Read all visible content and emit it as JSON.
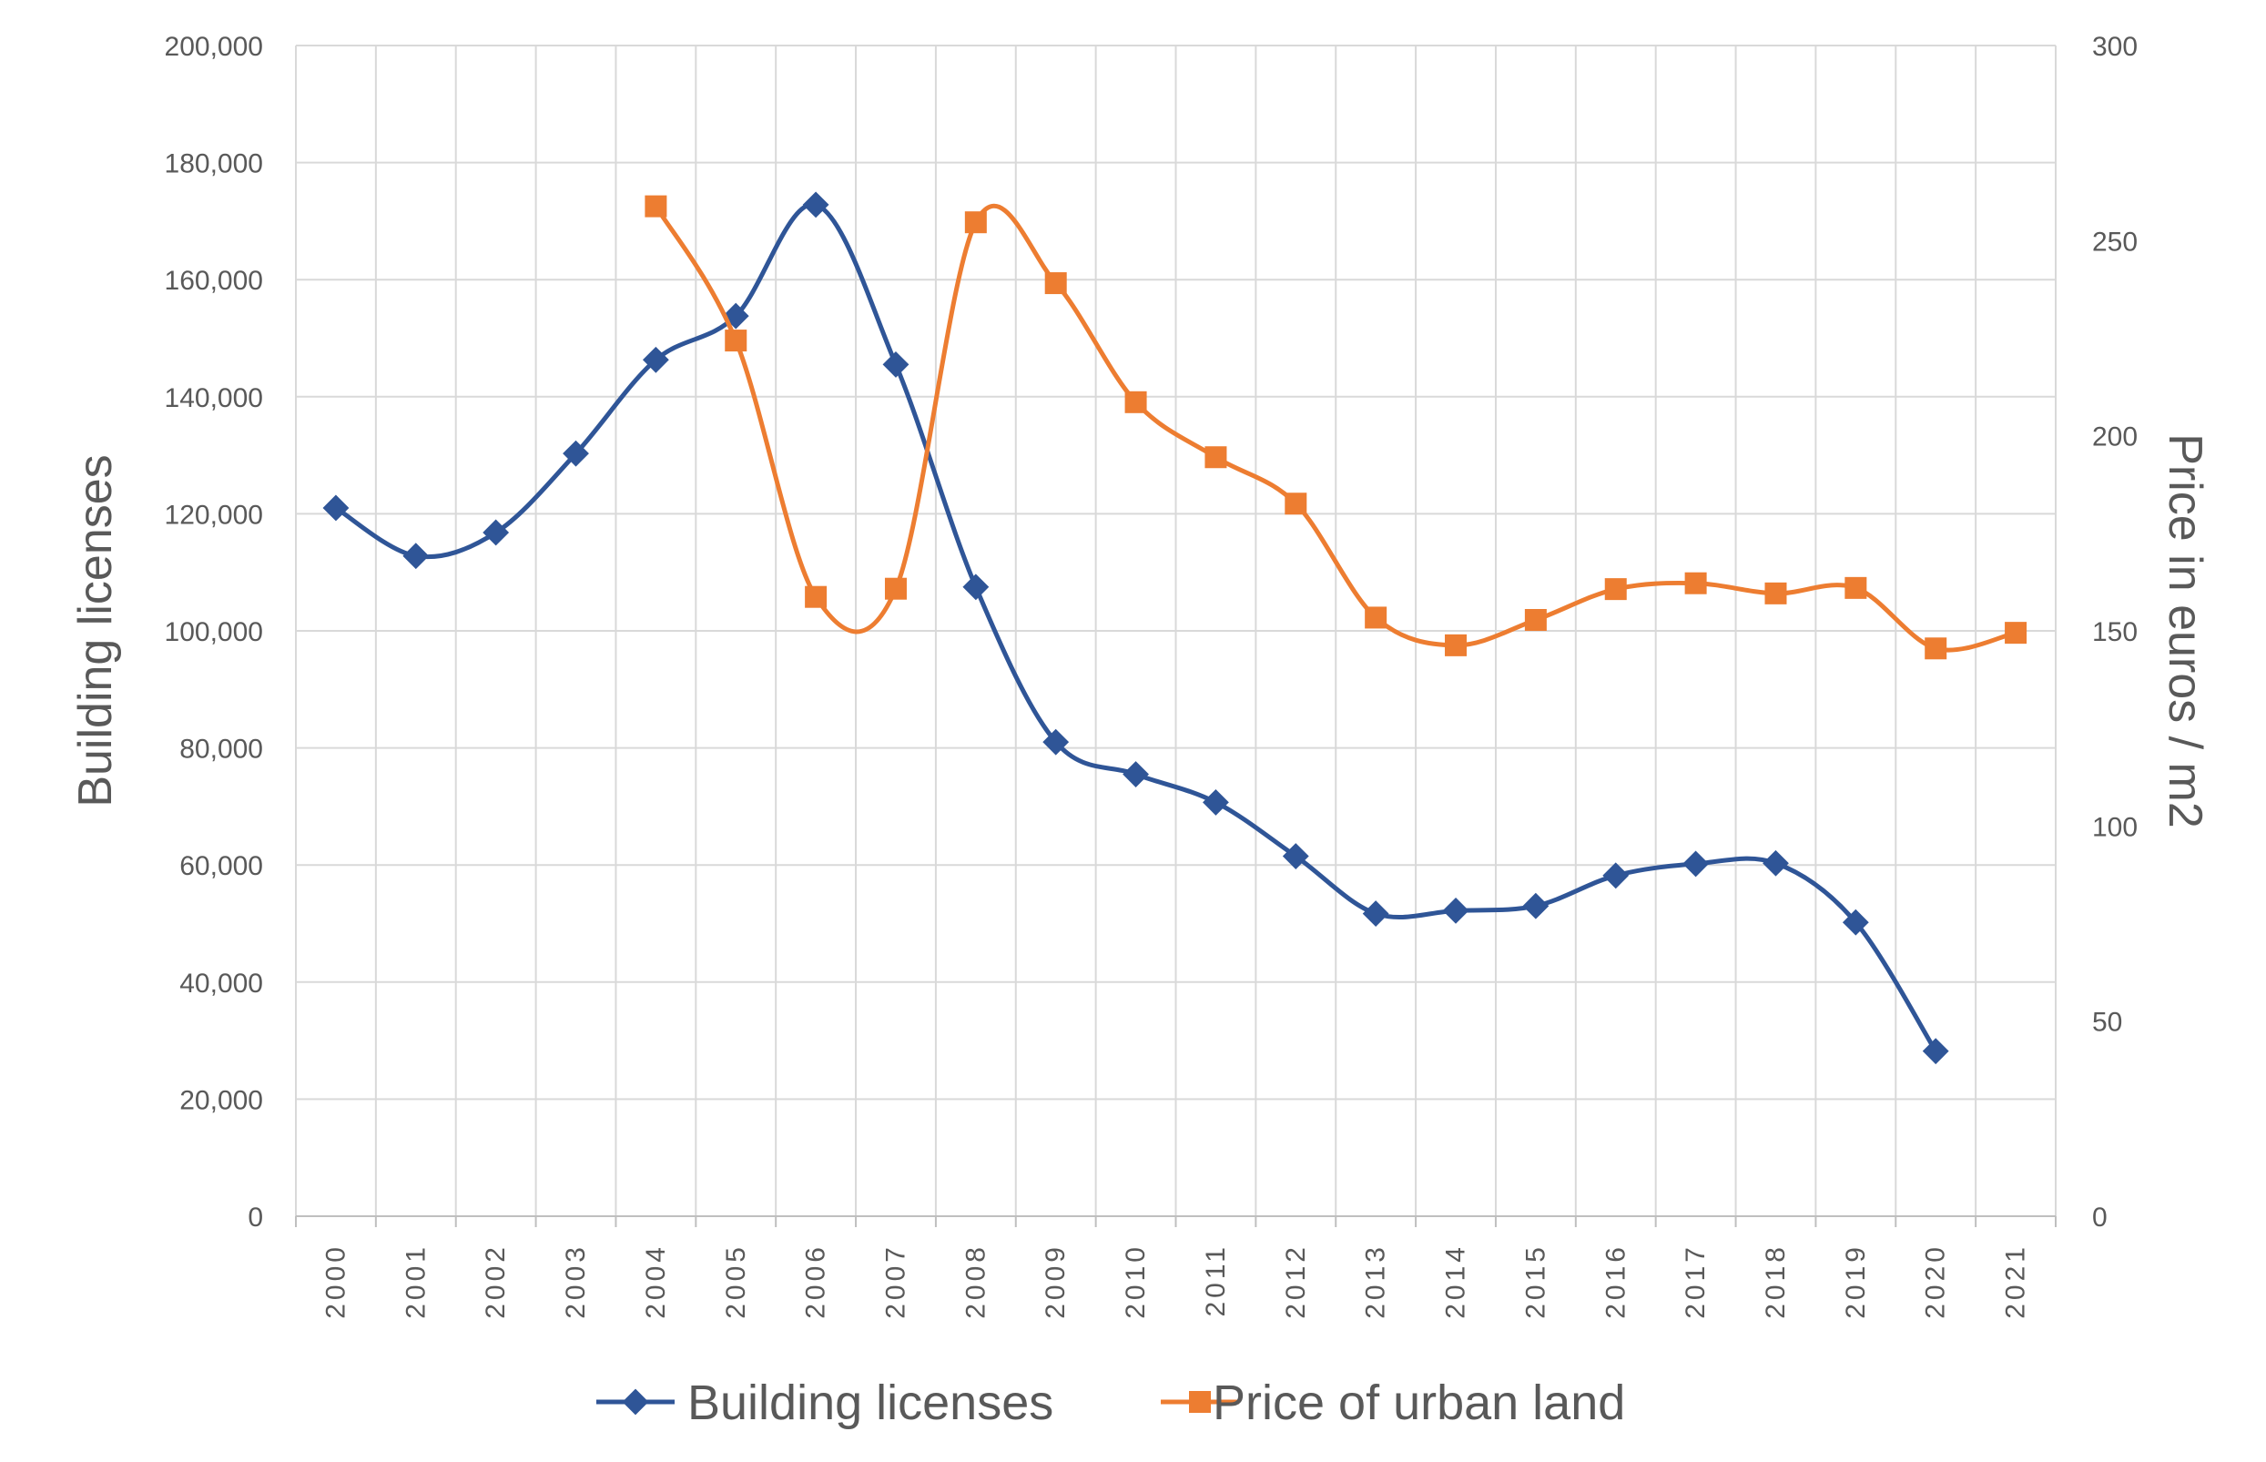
{
  "chart_data": {
    "type": "line",
    "categories": [
      "2000",
      "2001",
      "2002",
      "2003",
      "2004",
      "2005",
      "2006",
      "2007",
      "2008",
      "2009",
      "2010",
      "2011",
      "2012",
      "2013",
      "2014",
      "2015",
      "2016",
      "2017",
      "2018",
      "2019",
      "2020",
      "2021"
    ],
    "y_left": {
      "label": "Building licenses",
      "range": [
        0,
        200000
      ],
      "ticks": [
        "0",
        "20,000",
        "40,000",
        "60,000",
        "80,000",
        "100,000",
        "120,000",
        "140,000",
        "160,000",
        "180,000",
        "200,000"
      ]
    },
    "y_right": {
      "label": "Price in euros / m2",
      "range": [
        0,
        300
      ],
      "ticks": [
        "0",
        "50",
        "100",
        "150",
        "200",
        "250",
        "300"
      ]
    },
    "grid": true,
    "smoothed": true,
    "legend_position": "bottom",
    "series": [
      {
        "name": "Building licenses",
        "axis": "left",
        "color": "#2F5597",
        "marker": "diamond",
        "values": [
          121000,
          112800,
          116800,
          130300,
          146300,
          153800,
          172800,
          145500,
          107500,
          81000,
          75500,
          70700,
          61500,
          51700,
          52200,
          53000,
          58200,
          60200,
          60300,
          50200,
          28200,
          null
        ]
      },
      {
        "name": "Price of urban land",
        "axis": "right",
        "color": "#ED7D31",
        "marker": "square",
        "values": [
          null,
          null,
          null,
          null,
          258.8,
          224.4,
          158.7,
          160.8,
          254.7,
          239.1,
          208.6,
          194.5,
          182.6,
          153.4,
          146.3,
          152.8,
          160.7,
          162.2,
          159.6,
          161.0,
          145.5,
          149.5
        ]
      }
    ]
  }
}
